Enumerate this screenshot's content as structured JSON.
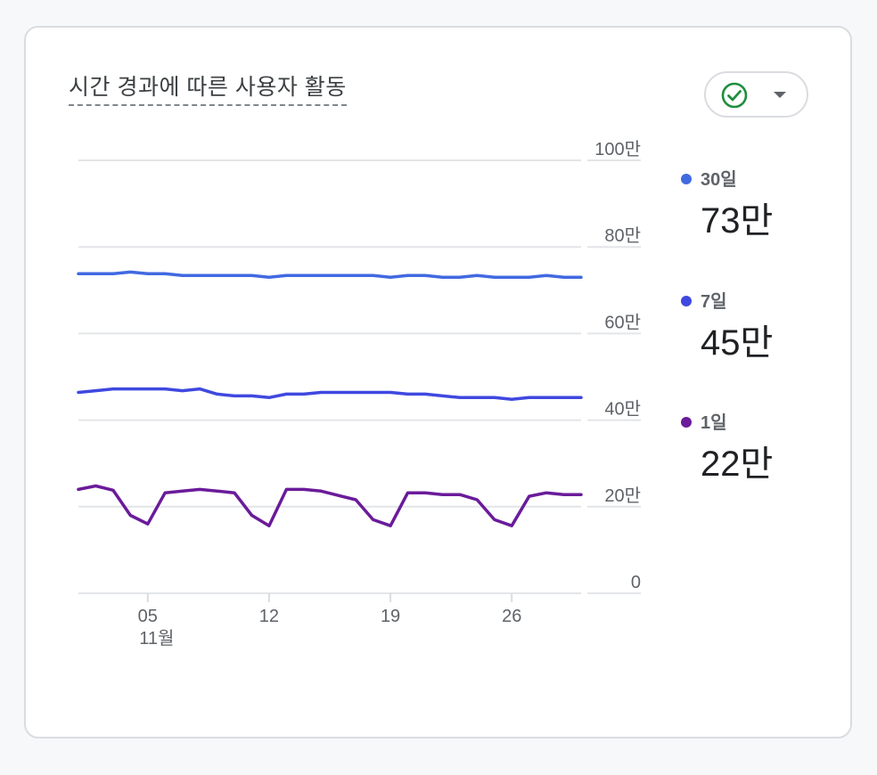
{
  "card": {
    "title": "시간 경과에 따른 사용자 활동",
    "status_button": {
      "icon": "check-circle-icon",
      "icon_color": "#1e8e3e",
      "dropdown_icon": "caret-down-icon"
    }
  },
  "legend": [
    {
      "label": "30일",
      "value": "73만",
      "color": "#4169e1"
    },
    {
      "label": "7일",
      "value": "45만",
      "color": "#3f48e0"
    },
    {
      "label": "1일",
      "value": "22만",
      "color": "#6a1b9a"
    }
  ],
  "chart_data": {
    "type": "line",
    "x": [
      1,
      2,
      3,
      4,
      5,
      6,
      7,
      8,
      9,
      10,
      11,
      12,
      13,
      14,
      15,
      16,
      17,
      18,
      19,
      20,
      21,
      22,
      23,
      24,
      25,
      26,
      27,
      28,
      29,
      30
    ],
    "xlim": [
      1,
      30
    ],
    "x_ticks": [
      {
        "x": 5,
        "label": "05",
        "sublabel": "11월"
      },
      {
        "x": 12,
        "label": "12",
        "sublabel": ""
      },
      {
        "x": 19,
        "label": "19",
        "sublabel": ""
      },
      {
        "x": 26,
        "label": "26",
        "sublabel": ""
      }
    ],
    "ylim": [
      0,
      1000000
    ],
    "y_ticks": [
      {
        "value": 0,
        "label": "0"
      },
      {
        "value": 200000,
        "label": "20만"
      },
      {
        "value": 400000,
        "label": "40만"
      },
      {
        "value": 600000,
        "label": "60만"
      },
      {
        "value": 800000,
        "label": "80만"
      },
      {
        "value": 1000000,
        "label": "100만"
      }
    ],
    "y_axis_position": "right",
    "grid": true,
    "legend_position": "right",
    "series": [
      {
        "name": "30일",
        "color": "#4169e1",
        "values": [
          738000,
          738000,
          738000,
          742000,
          738000,
          738000,
          734000,
          734000,
          734000,
          734000,
          734000,
          730000,
          734000,
          734000,
          734000,
          734000,
          734000,
          734000,
          730000,
          734000,
          734000,
          730000,
          730000,
          734000,
          730000,
          730000,
          730000,
          734000,
          730000,
          730000
        ]
      },
      {
        "name": "7일",
        "color": "#3f48e0",
        "values": [
          464000,
          468000,
          472000,
          472000,
          472000,
          472000,
          468000,
          472000,
          460000,
          456000,
          456000,
          452000,
          460000,
          460000,
          464000,
          464000,
          464000,
          464000,
          464000,
          460000,
          460000,
          456000,
          452000,
          452000,
          452000,
          448000,
          452000,
          452000,
          452000,
          452000
        ]
      },
      {
        "name": "1일",
        "color": "#6a1b9a",
        "values": [
          240000,
          248000,
          238000,
          180000,
          160000,
          232000,
          236000,
          240000,
          236000,
          232000,
          180000,
          156000,
          240000,
          240000,
          236000,
          226000,
          216000,
          170000,
          156000,
          232000,
          232000,
          228000,
          228000,
          216000,
          170000,
          156000,
          224000,
          232000,
          228000,
          228000
        ]
      }
    ]
  }
}
